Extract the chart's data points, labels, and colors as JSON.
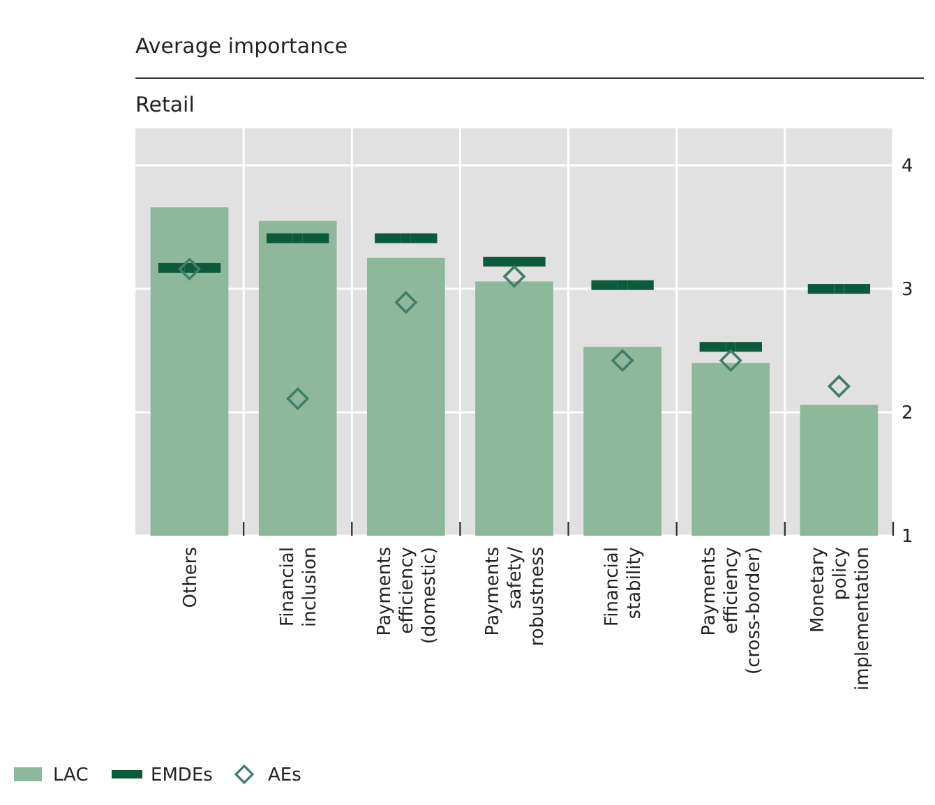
{
  "chart_data": {
    "type": "bar",
    "title": "Average importance",
    "subtitle": "Retail",
    "categories": [
      "Others",
      "Financial inclusion",
      "Payments efficiency (domestic)",
      "Payments safety/ robustness",
      "Financial stability",
      "Payments efficiency (cross-border)",
      "Monetary policy implementation"
    ],
    "series": [
      {
        "name": "LAC",
        "color": "#8db89c",
        "values": [
          3.66,
          3.55,
          3.25,
          3.06,
          2.53,
          2.4,
          2.06
        ]
      },
      {
        "name": "EMDEs",
        "type": "scatter",
        "marker": "square",
        "color": "#0b5a3c",
        "values": [
          3.17,
          3.41,
          3.41,
          3.22,
          3.03,
          2.53,
          3.0
        ]
      },
      {
        "name": "AEs",
        "type": "scatter",
        "marker": "diamond",
        "color": "#3f7f68",
        "values": [
          3.16,
          2.11,
          2.89,
          3.1,
          2.42,
          2.42,
          2.21
        ]
      }
    ],
    "ylim": [
      1,
      4.3
    ],
    "yticks": [
      1,
      2,
      3,
      4
    ],
    "grid": true,
    "legend": "bottom left"
  }
}
